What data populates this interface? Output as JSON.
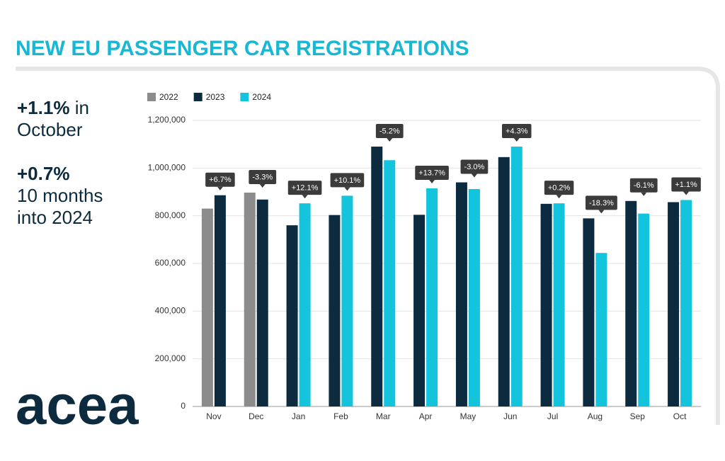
{
  "chart_data": {
    "type": "bar",
    "title": "NEW EU PASSENGER CAR REGISTRATIONS",
    "categories": [
      "Nov",
      "Dec",
      "Jan",
      "Feb",
      "Mar",
      "Apr",
      "May",
      "Jun",
      "Jul",
      "Aug",
      "Sep",
      "Oct"
    ],
    "series": [
      {
        "name": "2022",
        "color": "#8c8c8c",
        "values": [
          830000,
          897000,
          null,
          null,
          null,
          null,
          null,
          null,
          null,
          null,
          null,
          null
        ]
      },
      {
        "name": "2023",
        "color": "#0d2b3e",
        "values": [
          886000,
          868000,
          760000,
          803000,
          1090000,
          804000,
          940000,
          1046000,
          850000,
          789000,
          862000,
          857000
        ]
      },
      {
        "name": "2024",
        "color": "#14c3dc",
        "values": [
          null,
          null,
          852000,
          884000,
          1033000,
          915000,
          912000,
          1090000,
          852000,
          644000,
          809000,
          866000
        ]
      }
    ],
    "annotations": [
      "+6.7%",
      "-3.3%",
      "+12.1%",
      "+10.1%",
      "-5.2%",
      "+13.7%",
      "-3.0%",
      "+4.3%",
      "+0.2%",
      "-18.3%",
      "-6.1%",
      "+1.1%"
    ],
    "ylim": [
      0,
      1200000
    ],
    "yticks": [
      0,
      {
        "value": 200000,
        "label": "200,000"
      },
      {
        "value": 400000,
        "label": "400,000"
      },
      {
        "value": 600000,
        "label": "600,000"
      },
      {
        "value": 800000,
        "label": "800,000"
      },
      {
        "value": 1000000,
        "label": "1,000,000"
      },
      {
        "value": 1200000,
        "label": "1,200,000"
      }
    ],
    "grid": true
  },
  "highlights": [
    {
      "figure": "+1.1%",
      "caption": "in October"
    },
    {
      "figure": "+0.7%",
      "caption": "10 months into 2024"
    }
  ],
  "logo": "acea"
}
